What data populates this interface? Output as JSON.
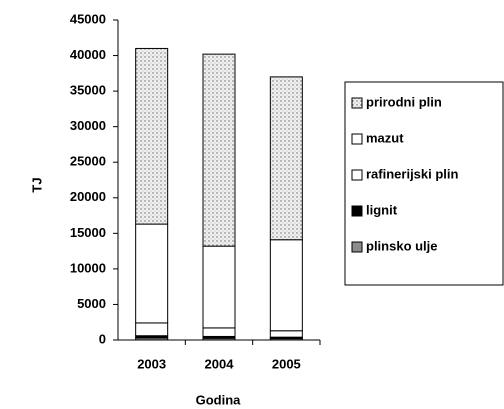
{
  "chart_data": {
    "type": "stacked_bar",
    "categories": [
      "2003",
      "2004",
      "2005"
    ],
    "series": [
      {
        "name": "plinsko ulje",
        "color": "#8c8c8c",
        "values": [
          300,
          250,
          200
        ]
      },
      {
        "name": "lignit",
        "color": "#000000",
        "values": [
          300,
          250,
          200
        ]
      },
      {
        "name": "rafinerijski plin",
        "color": "#ffffff",
        "values": [
          1800,
          1200,
          900
        ]
      },
      {
        "name": "mazut",
        "color": "#ffffff",
        "values": [
          13900,
          11500,
          12800
        ]
      },
      {
        "name": "prirodni plin",
        "color": "#dcdcdc",
        "values": [
          24700,
          27000,
          22900
        ]
      }
    ],
    "ylabel": "TJ",
    "xlabel": "Godina",
    "ylim": [
      0,
      45000
    ],
    "yticks": [
      0,
      5000,
      10000,
      15000,
      20000,
      25000,
      30000,
      35000,
      40000,
      45000
    ],
    "legend": "right"
  }
}
